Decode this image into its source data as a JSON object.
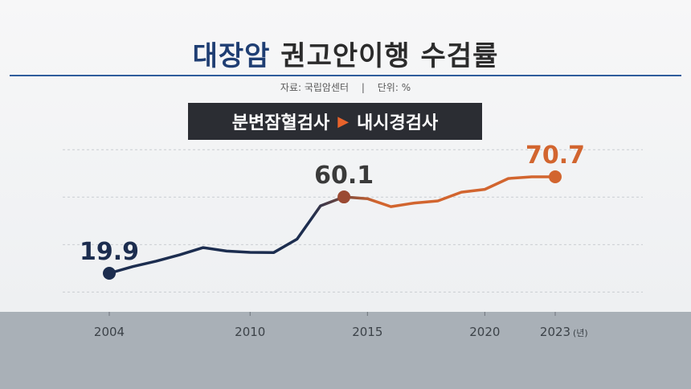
{
  "header": {
    "title_accent": "대장암",
    "title_rest": "권고안이행 수검률",
    "source": "자료: 국립암센터",
    "unit": "단위: %",
    "separator": "|"
  },
  "banner": {
    "from": "분변잠혈검사",
    "arrow": "▶",
    "to": "내시경검사"
  },
  "colors": {
    "navy": "#1c2d4f",
    "orange": "#d2652f",
    "title_accent": "#1f3e73",
    "banner_bg": "#2b2d33"
  },
  "chart_data": {
    "type": "line",
    "title": "대장암 권고안이행 수검률",
    "xlabel": "",
    "ylabel": "",
    "x_unit": "(년)",
    "xlim": [
      2004,
      2023
    ],
    "ylim": [
      10,
      85
    ],
    "grid": true,
    "x_ticks": [
      2004,
      2010,
      2015,
      2020,
      2023
    ],
    "x_tick_labels": [
      "2004",
      "2010",
      "2015",
      "2020",
      "2023"
    ],
    "series": [
      {
        "x": [
          2004,
          2005,
          2006,
          2007,
          2008,
          2009,
          2010,
          2011,
          2012,
          2013,
          2014,
          2015,
          2016,
          2017,
          2018,
          2019,
          2020,
          2021,
          2022,
          2023
        ],
        "values": [
          19.9,
          23.4,
          26.3,
          29.6,
          33.4,
          31.6,
          30.9,
          30.8,
          37.9,
          55.4,
          60.1,
          59.2,
          55.0,
          56.9,
          58.0,
          62.6,
          64.1,
          69.8,
          70.7,
          70.7
        ]
      }
    ],
    "labels": [
      {
        "x": 2004,
        "y": 19.9,
        "text": "19.9"
      },
      {
        "x": 2014,
        "y": 60.1,
        "text": "60.1"
      },
      {
        "x": 2023,
        "y": 70.7,
        "text": "70.7"
      }
    ]
  }
}
